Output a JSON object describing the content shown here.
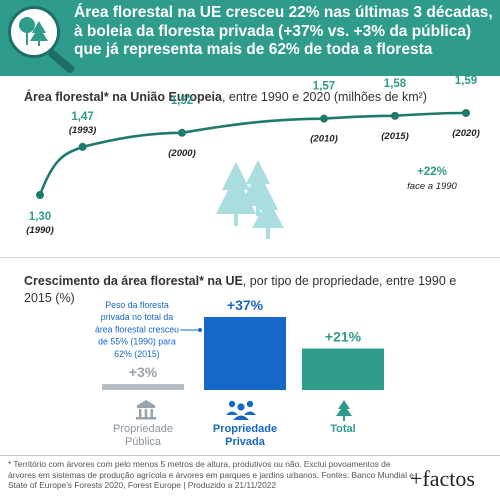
{
  "header": {
    "title_lines": [
      "Área florestal na UE cresceu 22% nas últimas 3 décadas,",
      "à boleia da floresta privada (+37% vs. +3% da pública)",
      "que já representa mais de 62% de toda a floresta"
    ],
    "icon": "trees-magnifier-icon"
  },
  "colors": {
    "header_bg": "#2f9c8b",
    "line": "#1e7a6c",
    "teal": "#2f9c8b",
    "private_blue": "#1668c8",
    "public_grey": "#b5bcc6",
    "tree_light": "#a9dde0"
  },
  "chart_data": [
    {
      "type": "line",
      "title_bold": "Área florestal* na União Europeia",
      "title_rest": ", entre 1990 e 2020 (milhões de km²)",
      "points": [
        {
          "year": 1990,
          "value": 1.3,
          "label": "1,30",
          "year_label": "(1990)"
        },
        {
          "year": 1993,
          "value": 1.47,
          "label": "1,47",
          "year_label": "(1993)"
        },
        {
          "year": 2000,
          "value": 1.52,
          "label": "1,52",
          "year_label": "(2000)"
        },
        {
          "year": 2010,
          "value": 1.57,
          "label": "1,57",
          "year_label": "(2010)"
        },
        {
          "year": 2015,
          "value": 1.58,
          "label": "1,58",
          "year_label": "(2015)"
        },
        {
          "year": 2020,
          "value": 1.59,
          "label": "1,59",
          "year_label": "(2020)"
        }
      ],
      "annotation_value": "+22%",
      "annotation_text": "face a 1990"
    },
    {
      "type": "bar",
      "title_bold": "Crescimento da área florestal* na UE",
      "title_rest": ", por tipo de propriedade, entre 1990 e 2015 (%)",
      "bars": [
        {
          "key": "public",
          "label_lines": [
            "Propriedade",
            "Pública"
          ],
          "value": 3,
          "value_label": "+3%",
          "icon": "government-building-icon"
        },
        {
          "key": "private",
          "label_lines": [
            "Propriedade",
            "Privada"
          ],
          "value": 37,
          "value_label": "+37%",
          "icon": "people-group-icon"
        },
        {
          "key": "total",
          "label_lines": [
            "Total"
          ],
          "value": 21,
          "value_label": "+21%",
          "icon": "tree-icon"
        }
      ],
      "callout_lines": [
        "Peso da floresta",
        "privada no total da",
        "área florestal cresceu",
        "de 55% (1990) para",
        "62% (2015)"
      ]
    }
  ],
  "footnote": "* Território com árvores com pelo menos 5 metros de altura, produtivos ou não. Exclui povoamentos de árvores em sistemas de produção agrícola e árvores em parques e jardins urbanos. Fontes: Banco Mundial e State of Europe's Forests 2020, Forest Europe | Produzido a 21/11/2022",
  "brand": "+factos"
}
